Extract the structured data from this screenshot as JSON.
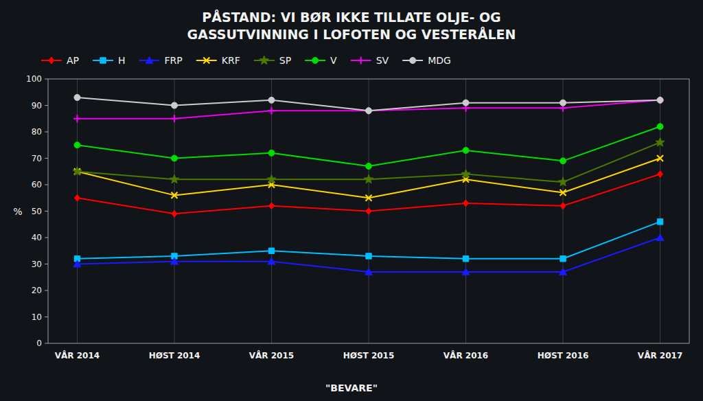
{
  "chart_data": {
    "type": "line",
    "title": "PÅSTAND: VI BØR IKKE TILLATE OLJE- OG\nGASSUTVINNING I LOFOTEN OG VESTERÅLEN",
    "x_label": "\"BEVARE\"",
    "y_label": "%",
    "categories": [
      "VÅR 2014",
      "HØST 2014",
      "VÅR 2015",
      "HØST 2015",
      "VÅR 2016",
      "HØST 2016",
      "VÅR 2017"
    ],
    "series": [
      {
        "name": "AP",
        "color": "#ff0000",
        "marker": "diamond",
        "values": [
          55,
          49,
          52,
          50,
          53,
          52,
          64
        ]
      },
      {
        "name": "H",
        "color": "#00bfff",
        "marker": "square",
        "values": [
          32,
          33,
          35,
          33,
          32,
          32,
          46
        ]
      },
      {
        "name": "FRP",
        "color": "#1a1aff",
        "marker": "triangle",
        "values": [
          30,
          31,
          31,
          27,
          27,
          27,
          40
        ]
      },
      {
        "name": "KRF",
        "color": "#ffd700",
        "marker": "x",
        "values": [
          65,
          56,
          60,
          55,
          62,
          57,
          70
        ]
      },
      {
        "name": "SP",
        "color": "#4a7a00",
        "marker": "star",
        "values": [
          65,
          62,
          62,
          62,
          64,
          61,
          76
        ]
      },
      {
        "name": "V",
        "color": "#00dd00",
        "marker": "circle",
        "values": [
          75,
          70,
          72,
          67,
          73,
          69,
          82
        ]
      },
      {
        "name": "SV",
        "color": "#ee00ee",
        "marker": "plus",
        "values": [
          85,
          85,
          88,
          88,
          89,
          89,
          92
        ]
      },
      {
        "name": "MDG",
        "color": "#cccccc",
        "marker": "circle",
        "values": [
          93,
          90,
          92,
          88,
          91,
          91,
          92
        ]
      }
    ],
    "ylim": [
      0,
      100
    ],
    "yticks": [
      0,
      10,
      20,
      30,
      40,
      50,
      60,
      70,
      80,
      90,
      100
    ],
    "grid": "x",
    "legend": "top-left"
  }
}
